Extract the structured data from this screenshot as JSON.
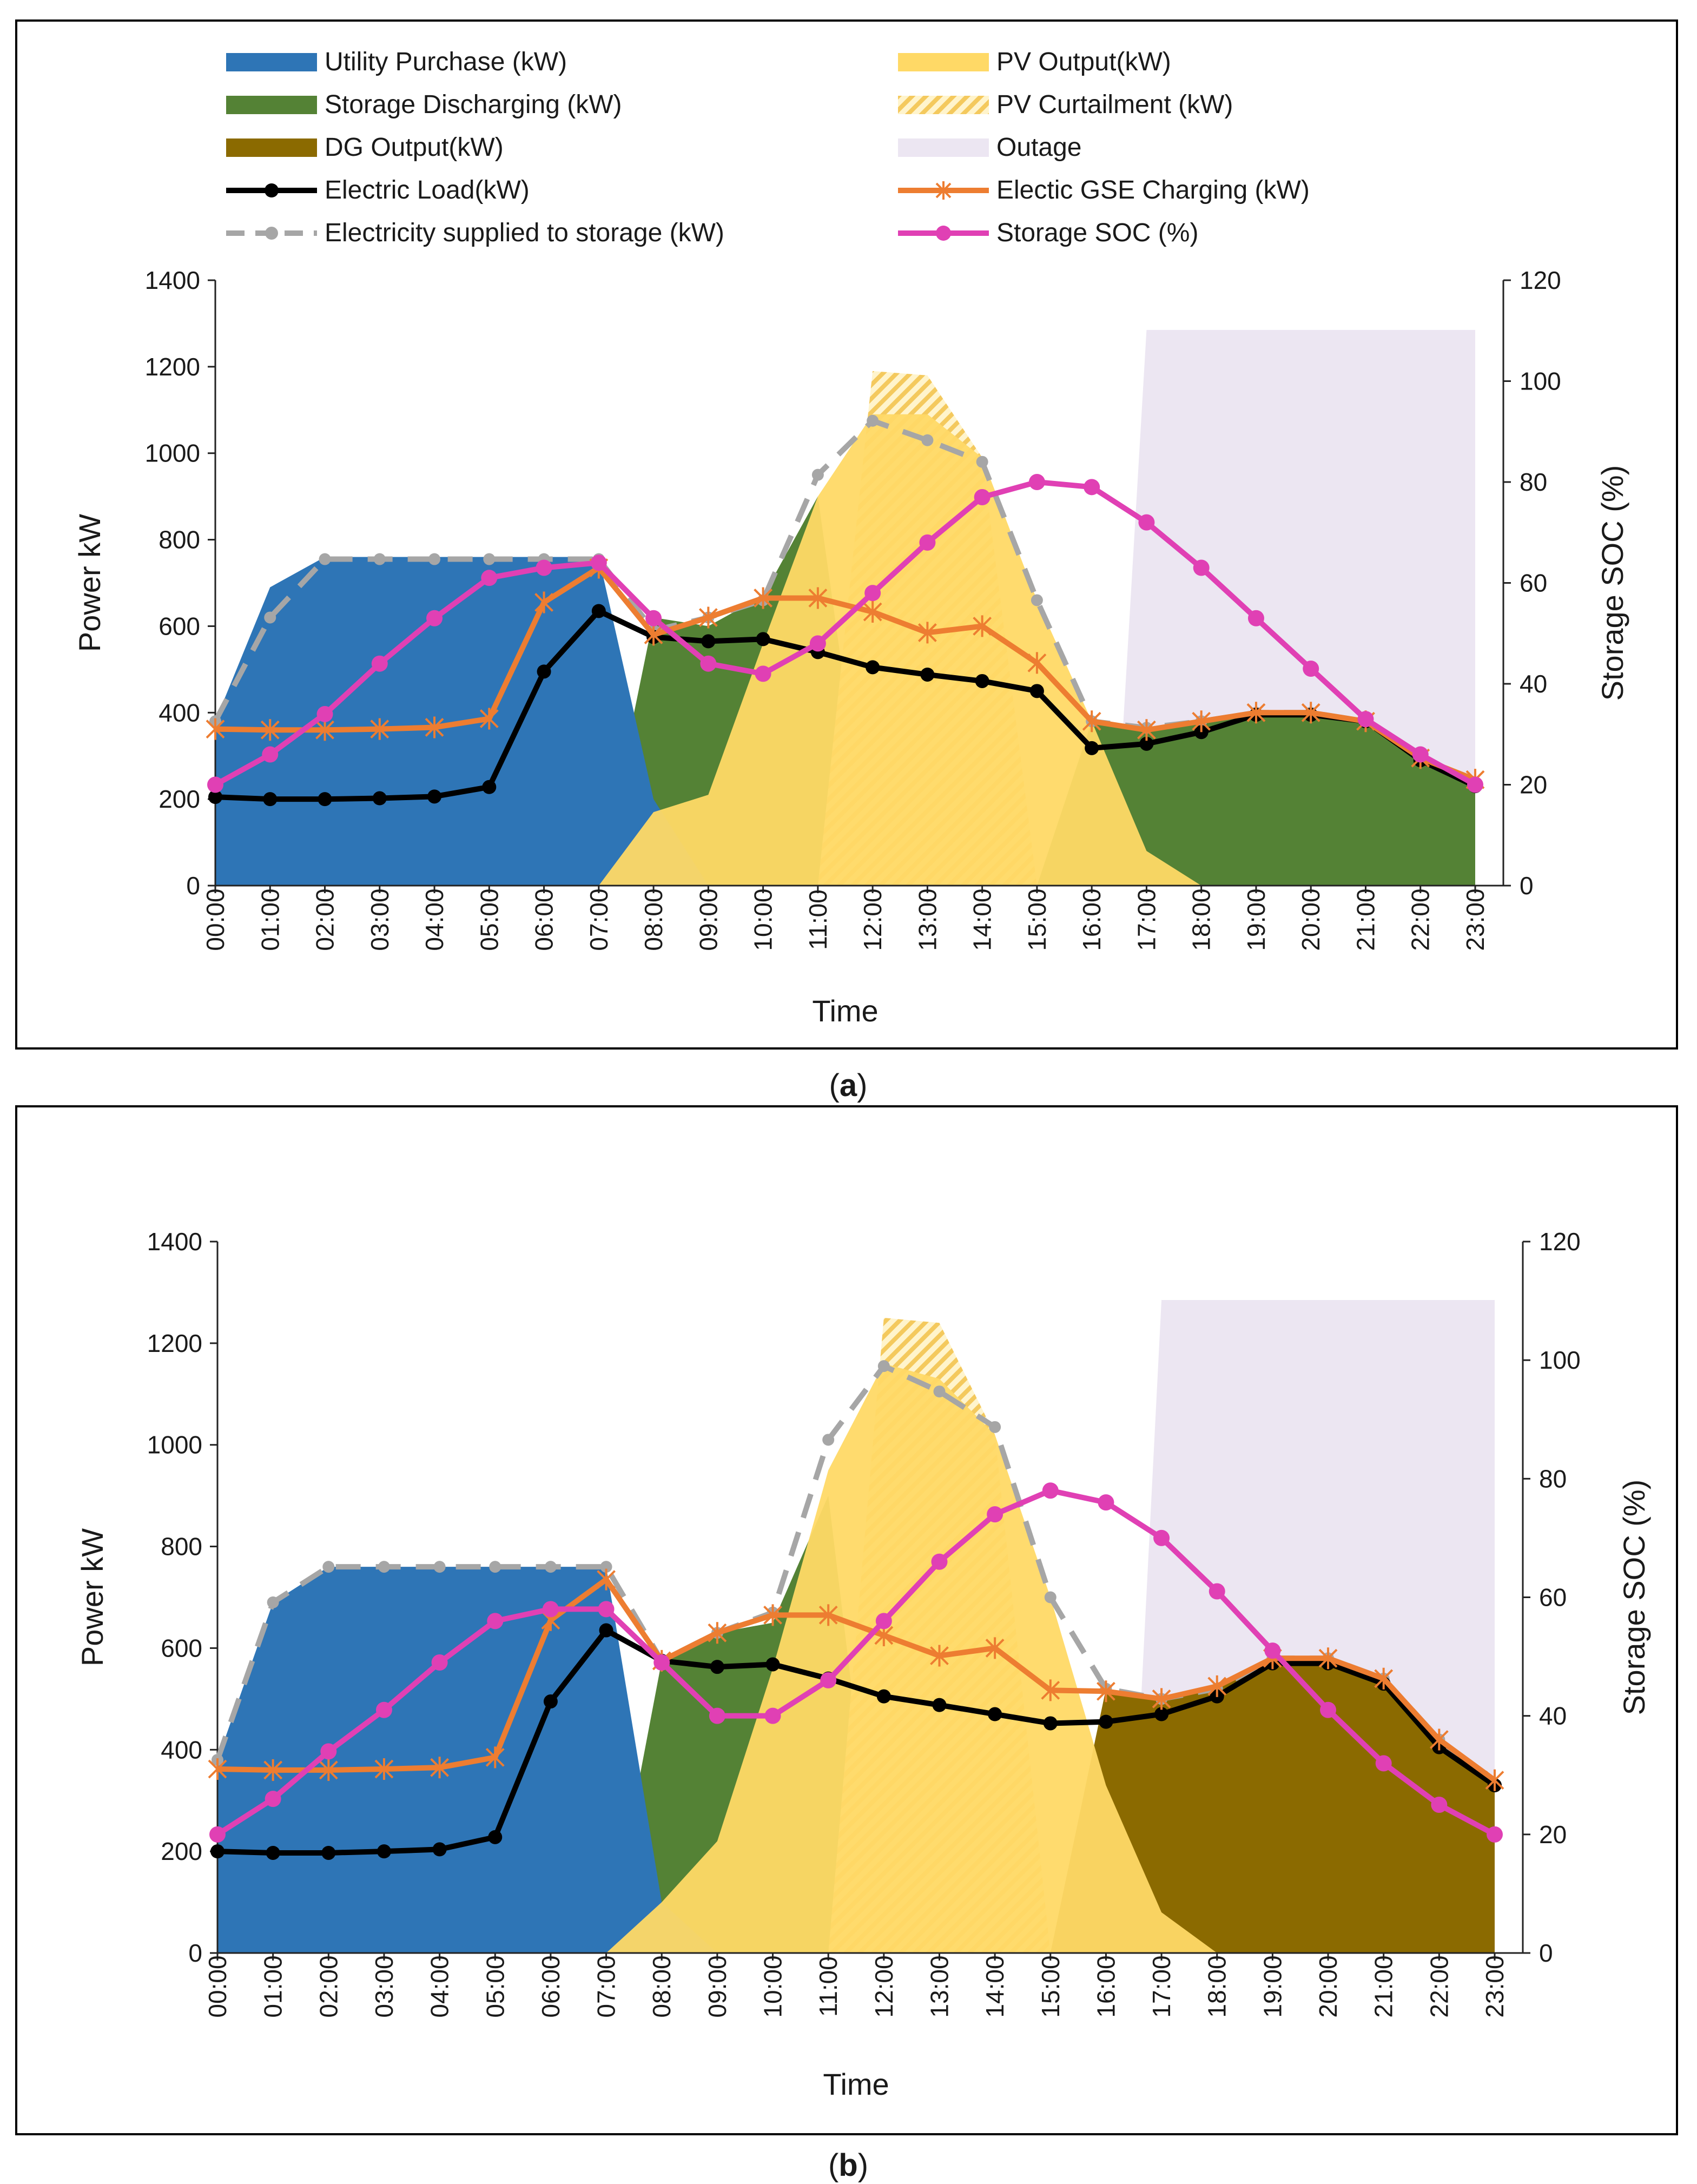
{
  "legend": {
    "utility": "Utility Purchase (kW)",
    "storage_dis": "Storage Discharging (kW)",
    "dg": "DG Output(kW)",
    "load": "Electric Load(kW)",
    "supplied": "Electricity supplied to storage (kW)",
    "pv": "PV Output(kW)",
    "pv_curt": "PV Curtailment (kW)",
    "outage": "Outage",
    "gse": "Electic GSE Charging (kW)",
    "soc": "Storage SOC (%)"
  },
  "colors": {
    "utility": "#2E75B6",
    "storage_dis": "#548235",
    "dg": "#8B6A00",
    "pv": "#FFD966",
    "pv_curt": "#F7D26A",
    "outage": "#ECE6F2",
    "load": "#000000",
    "supplied": "#A6A6A6",
    "gse": "#ED7D31",
    "soc": "#E040B4"
  },
  "chart_data": [
    {
      "panel": "a",
      "caption_letter": "a",
      "caption_open": "(",
      "caption_close": ")",
      "type": "area",
      "xlabel": "Time",
      "ylabel": "Power kW",
      "y2label": "Storage SOC (%)",
      "ylim": [
        0,
        1400
      ],
      "y2lim": [
        0,
        120
      ],
      "yticks": [
        "0",
        "200",
        "400",
        "600",
        "800",
        "1000",
        "1200",
        "1400"
      ],
      "y2ticks": [
        "0",
        "20",
        "40",
        "60",
        "80",
        "100",
        "120"
      ],
      "categories": [
        "00:00",
        "01:00",
        "02:00",
        "03:00",
        "04:00",
        "05:00",
        "06:00",
        "07:00",
        "08:00",
        "09:00",
        "10:00",
        "11:00",
        "12:00",
        "13:00",
        "14:00",
        "15:00",
        "16:00",
        "17:00",
        "18:00",
        "19:00",
        "20:00",
        "21:00",
        "22:00",
        "23:00"
      ],
      "series": [
        {
          "name": "Utility Purchase (kW)",
          "kind": "area",
          "key": "utility",
          "values": [
            380,
            690,
            760,
            760,
            760,
            760,
            760,
            760,
            200,
            0,
            0,
            0,
            0,
            0,
            0,
            0,
            0,
            0,
            0,
            0,
            0,
            0,
            0,
            0
          ]
        },
        {
          "name": "Storage Discharging (kW)",
          "kind": "area",
          "key": "storage_dis",
          "values": [
            0,
            0,
            0,
            0,
            0,
            0,
            0,
            0,
            620,
            600,
            670,
            900,
            0,
            0,
            0,
            0,
            380,
            360,
            380,
            400,
            400,
            380,
            290,
            230
          ]
        },
        {
          "name": "PV Output(kW)",
          "kind": "area",
          "key": "pv",
          "values": [
            0,
            0,
            0,
            0,
            0,
            0,
            0,
            0,
            170,
            210,
            560,
            900,
            1090,
            1090,
            990,
            660,
            380,
            80,
            0,
            0,
            0,
            0,
            0,
            0
          ]
        },
        {
          "name": "PV Curtailment (kW)",
          "kind": "area",
          "key": "pv_curt",
          "values": [
            0,
            0,
            0,
            0,
            0,
            0,
            0,
            0,
            0,
            0,
            0,
            0,
            1190,
            1180,
            990,
            0,
            0,
            0,
            0,
            0,
            0,
            0,
            0,
            0
          ]
        },
        {
          "name": "DG Output(kW)",
          "kind": "area",
          "key": "dg",
          "values": [
            0,
            0,
            0,
            0,
            0,
            0,
            0,
            0,
            0,
            0,
            0,
            0,
            0,
            0,
            0,
            0,
            0,
            0,
            0,
            0,
            0,
            0,
            0,
            0
          ]
        },
        {
          "name": "Electric Load(kW)",
          "kind": "line",
          "key": "load",
          "values": [
            205,
            200,
            200,
            202,
            206,
            228,
            495,
            635,
            575,
            565,
            570,
            540,
            505,
            488,
            473,
            450,
            318,
            328,
            355,
            395,
            395,
            380,
            290,
            230
          ]
        },
        {
          "name": "Electricity supplied to storage (kW)",
          "kind": "line",
          "key": "supplied",
          "values": [
            380,
            620,
            755,
            755,
            755,
            755,
            755,
            755,
            590,
            620,
            660,
            950,
            1075,
            1030,
            980,
            660,
            380,
            365,
            380,
            400,
            400,
            380,
            295,
            230
          ]
        },
        {
          "name": "Electic GSE Charging (kW)",
          "kind": "line",
          "key": "gse",
          "values": [
            362,
            360,
            360,
            362,
            366,
            386,
            655,
            735,
            580,
            620,
            665,
            665,
            633,
            585,
            600,
            515,
            380,
            360,
            380,
            400,
            400,
            380,
            295,
            245
          ]
        },
        {
          "name": "Storage SOC (%)",
          "kind": "line",
          "axis": "right",
          "key": "soc",
          "values": [
            20,
            26,
            34,
            44,
            53,
            61,
            63,
            64,
            53,
            44,
            42,
            48,
            58,
            68,
            77,
            80,
            79,
            72,
            63,
            53,
            43,
            33,
            26,
            20
          ]
        }
      ],
      "outage": {
        "label": "Outage",
        "start": 16.4,
        "ramp_end": 17.0,
        "end": 23.0,
        "top": 1285
      }
    },
    {
      "panel": "b",
      "caption_letter": "b",
      "caption_open": "(",
      "caption_close": ")",
      "type": "area",
      "xlabel": "Time",
      "ylabel": "Power kW",
      "y2label": "Storage SOC (%)",
      "ylim": [
        0,
        1400
      ],
      "y2lim": [
        0,
        120
      ],
      "yticks": [
        "0",
        "200",
        "400",
        "600",
        "800",
        "1000",
        "1200",
        "1400"
      ],
      "y2ticks": [
        "0",
        "20",
        "40",
        "60",
        "80",
        "100",
        "120"
      ],
      "categories": [
        "00:00",
        "01:00",
        "02:00",
        "03:00",
        "04:00",
        "05:00",
        "06:00",
        "07:00",
        "08:00",
        "09:00",
        "10:00",
        "11:00",
        "12:00",
        "13:00",
        "14:00",
        "15:00",
        "16:00",
        "17:00",
        "18:00",
        "19:00",
        "20:00",
        "21:00",
        "22:00",
        "23:00"
      ],
      "series": [
        {
          "name": "Utility Purchase (kW)",
          "kind": "area",
          "key": "utility",
          "values": [
            380,
            690,
            760,
            760,
            760,
            760,
            760,
            760,
            100,
            0,
            0,
            0,
            0,
            0,
            0,
            0,
            0,
            0,
            0,
            0,
            0,
            0,
            0,
            0
          ]
        },
        {
          "name": "Storage Discharging (kW)",
          "kind": "area",
          "key": "storage_dis",
          "values": [
            0,
            0,
            0,
            0,
            0,
            0,
            0,
            0,
            575,
            630,
            650,
            900,
            0,
            0,
            0,
            0,
            420,
            400,
            430,
            480,
            480,
            450,
            350,
            250
          ]
        },
        {
          "name": "PV Output(kW)",
          "kind": "area",
          "key": "pv",
          "values": [
            0,
            0,
            0,
            0,
            0,
            0,
            0,
            0,
            100,
            220,
            560,
            950,
            1160,
            1130,
            1020,
            700,
            330,
            80,
            0,
            0,
            0,
            0,
            0,
            0
          ]
        },
        {
          "name": "PV Curtailment (kW)",
          "kind": "area",
          "key": "pv_curt",
          "values": [
            0,
            0,
            0,
            0,
            0,
            0,
            0,
            0,
            0,
            0,
            0,
            0,
            1250,
            1240,
            1020,
            0,
            0,
            0,
            0,
            0,
            0,
            0,
            0,
            0
          ]
        },
        {
          "name": "DG Output(kW)",
          "kind": "area",
          "key": "dg",
          "values": [
            0,
            0,
            0,
            0,
            0,
            0,
            0,
            0,
            0,
            0,
            0,
            0,
            0,
            0,
            0,
            0,
            520,
            500,
            520,
            580,
            580,
            540,
            420,
            330
          ]
        },
        {
          "name": "Electric Load(kW)",
          "kind": "line",
          "key": "load",
          "values": [
            200,
            197,
            197,
            200,
            204,
            228,
            495,
            635,
            575,
            563,
            568,
            540,
            505,
            488,
            470,
            452,
            455,
            470,
            505,
            570,
            570,
            530,
            405,
            330
          ]
        },
        {
          "name": "Electricity supplied to storage (kW)",
          "kind": "line",
          "key": "supplied",
          "values": [
            380,
            690,
            760,
            760,
            760,
            760,
            760,
            760,
            575,
            630,
            670,
            1010,
            1155,
            1105,
            1035,
            700,
            520,
            500,
            520,
            580,
            580,
            540,
            420,
            330
          ]
        },
        {
          "name": "Electic GSE Charging (kW)",
          "kind": "line",
          "key": "gse",
          "values": [
            362,
            360,
            360,
            362,
            365,
            385,
            655,
            735,
            575,
            630,
            665,
            665,
            625,
            585,
            600,
            517,
            515,
            500,
            525,
            580,
            580,
            540,
            420,
            340
          ]
        },
        {
          "name": "Storage SOC (%)",
          "kind": "line",
          "axis": "right",
          "key": "soc",
          "values": [
            20,
            26,
            34,
            41,
            49,
            56,
            58,
            58,
            49,
            40,
            40,
            46,
            56,
            66,
            74,
            78,
            76,
            70,
            61,
            51,
            41,
            32,
            25,
            20
          ]
        }
      ],
      "outage": {
        "label": "Outage",
        "start": 16.4,
        "ramp_end": 17.0,
        "end": 23.0,
        "top": 1285
      }
    }
  ]
}
